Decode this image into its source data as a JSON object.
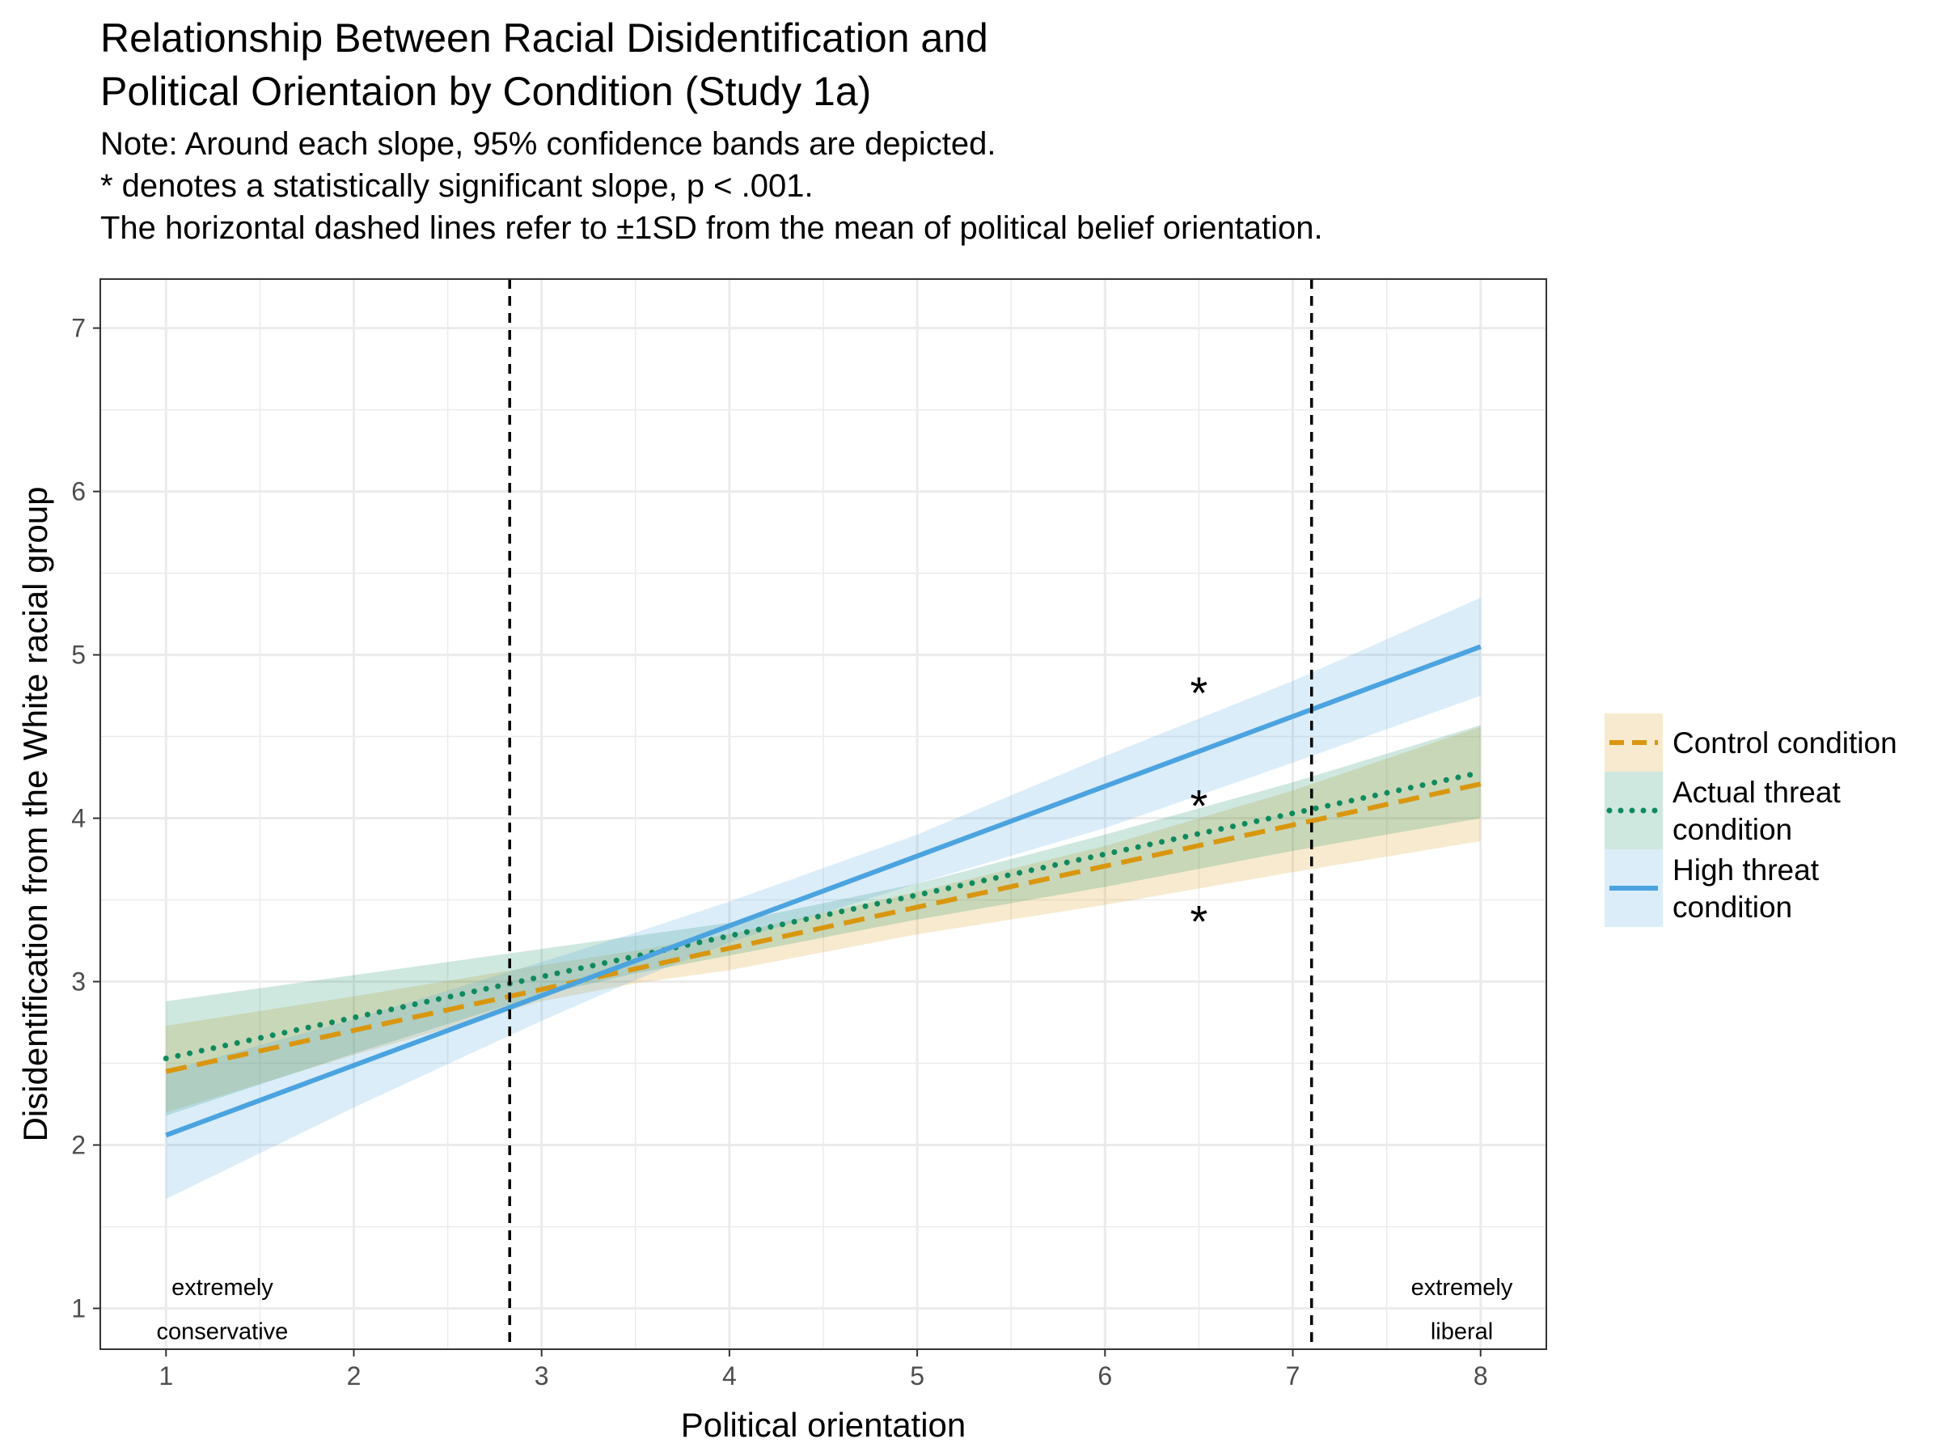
{
  "colors": {
    "control": "#D9960F",
    "actual": "#0F8A5F",
    "high": "#4BA3E0",
    "background": "#ffffff",
    "grid": "#EBEBEB",
    "sd_line": "#000000"
  },
  "chart_data": {
    "type": "line",
    "title": [
      "Relationship Between Racial Disidentification and",
      "Political Orientaion by Condition (Study 1a)"
    ],
    "subtitle": [
      "Note: Around each slope, 95% confidence bands are depicted.",
      "* denotes a statistically significant slope, p < .001.",
      "The horizontal dashed lines refer to ±1SD from the mean of political belief orientation."
    ],
    "xlabel": "Political orientation",
    "ylabel": "Disidentification from the White racial group",
    "xlim": [
      0.65,
      8.35
    ],
    "ylim": [
      0.75,
      7.3
    ],
    "x_ticks": [
      1,
      2,
      3,
      4,
      5,
      6,
      7,
      8
    ],
    "y_ticks": [
      1,
      2,
      3,
      4,
      5,
      6,
      7
    ],
    "grid": true,
    "legend_position": "right",
    "series": [
      {
        "name": "Control condition",
        "key": "control",
        "linestyle": "dashed",
        "x": [
          1,
          8
        ],
        "y": [
          2.45,
          4.21
        ],
        "band_x": [
          1,
          2,
          3,
          3.5,
          4,
          5,
          6,
          7,
          8
        ],
        "band_lower": [
          2.2,
          2.55,
          2.88,
          2.99,
          3.07,
          3.29,
          3.47,
          3.67,
          3.86
        ],
        "band_upper": [
          2.73,
          2.91,
          3.1,
          3.19,
          3.29,
          3.55,
          3.83,
          4.17,
          4.56
        ]
      },
      {
        "name": "Actual threat condition",
        "key": "actual",
        "linestyle": "dotted",
        "x": [
          1,
          8
        ],
        "y": [
          2.53,
          4.28
        ],
        "band_x": [
          1,
          2,
          3,
          3.5,
          4,
          5,
          6,
          7,
          8
        ],
        "band_lower": [
          2.18,
          2.56,
          2.92,
          3.05,
          3.16,
          3.38,
          3.58,
          3.8,
          4.0
        ],
        "band_upper": [
          2.88,
          3.04,
          3.2,
          3.28,
          3.36,
          3.6,
          3.9,
          4.22,
          4.57
        ]
      },
      {
        "name": "High threat condition",
        "key": "high",
        "linestyle": "solid",
        "x": [
          1,
          8
        ],
        "y": [
          2.06,
          5.05
        ],
        "band_x": [
          1,
          2,
          3,
          3.5,
          4,
          5,
          6,
          7,
          8
        ],
        "band_lower": [
          1.67,
          2.23,
          2.76,
          3.01,
          3.24,
          3.6,
          3.94,
          4.34,
          4.75
        ],
        "band_upper": [
          2.45,
          2.77,
          3.12,
          3.3,
          3.49,
          3.9,
          4.38,
          4.84,
          5.35
        ]
      }
    ],
    "sd_lines_x": [
      2.83,
      7.1
    ],
    "significance_stars": [
      {
        "x": 6.5,
        "y": 4.82,
        "text": "*"
      },
      {
        "x": 6.5,
        "y": 4.13,
        "text": "*"
      },
      {
        "x": 6.5,
        "y": 3.42,
        "text": "*"
      }
    ],
    "annotations": [
      {
        "x": 1.3,
        "y": 1.12,
        "text": "extremely"
      },
      {
        "x": 1.3,
        "y": 0.85,
        "text": "conservative"
      },
      {
        "x": 7.9,
        "y": 1.12,
        "text": "extremely"
      },
      {
        "x": 7.9,
        "y": 0.85,
        "text": "liberal"
      }
    ],
    "legend": [
      {
        "key": "control",
        "lines": [
          "Control condition"
        ]
      },
      {
        "key": "actual",
        "lines": [
          "Actual threat",
          "condition"
        ]
      },
      {
        "key": "high",
        "lines": [
          "High threat",
          "condition"
        ]
      }
    ]
  }
}
